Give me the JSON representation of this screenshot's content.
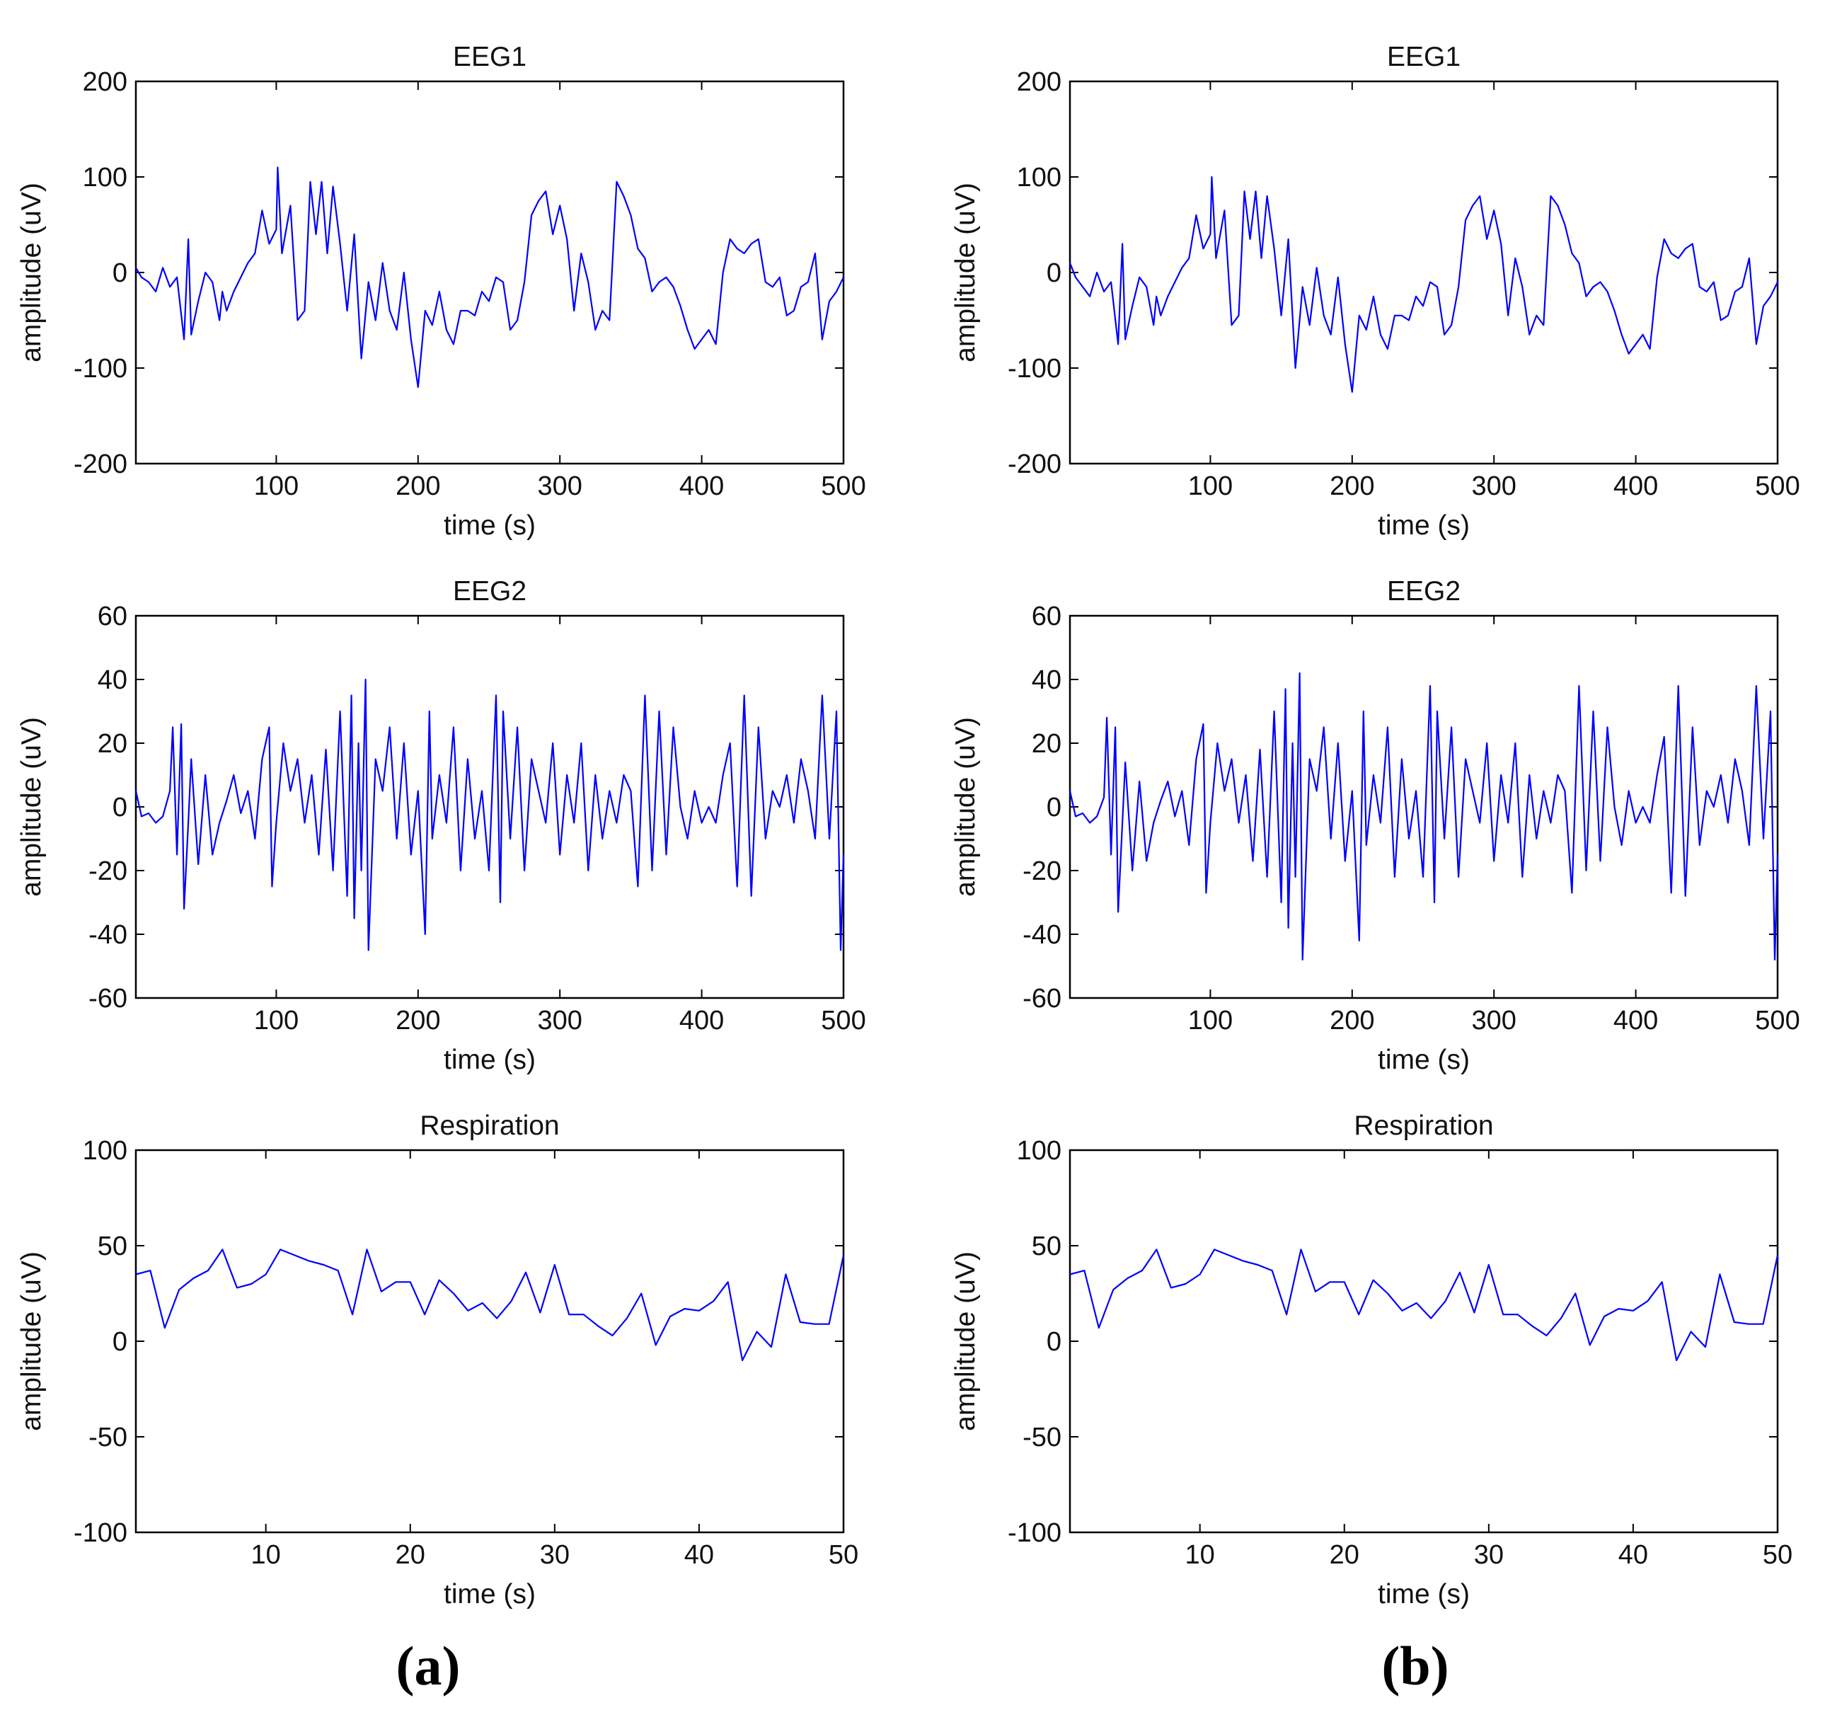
{
  "figure": {
    "panel_labels": [
      "a",
      "b"
    ]
  },
  "colors": {
    "line": "#0000ff",
    "axis": "#000000",
    "text": "#111111"
  },
  "chart_data": [
    {
      "panel": "a",
      "type": "line",
      "title": "EEG1",
      "xlabel": "time (s)",
      "ylabel": "amplitude (uV)",
      "xlim": [
        1,
        500
      ],
      "ylim": [
        -200,
        200
      ],
      "xticks": [
        100,
        200,
        300,
        400,
        500
      ],
      "yticks": [
        -200,
        -100,
        0,
        100,
        200
      ],
      "x": [
        1,
        5,
        10,
        15,
        20,
        25,
        30,
        35,
        38,
        40,
        45,
        50,
        55,
        60,
        62,
        65,
        70,
        75,
        80,
        85,
        90,
        95,
        100,
        101,
        104,
        110,
        115,
        120,
        124,
        128,
        132,
        136,
        140,
        145,
        150,
        155,
        160,
        165,
        170,
        175,
        180,
        185,
        190,
        195,
        200,
        205,
        210,
        215,
        220,
        225,
        230,
        235,
        240,
        245,
        250,
        255,
        260,
        265,
        270,
        275,
        280,
        285,
        290,
        295,
        300,
        305,
        310,
        315,
        320,
        325,
        330,
        335,
        340,
        345,
        350,
        355,
        360,
        365,
        370,
        375,
        380,
        385,
        390,
        395,
        400,
        405,
        410,
        415,
        420,
        425,
        430,
        435,
        440,
        445,
        450,
        455,
        460,
        465,
        470,
        475,
        480,
        485,
        490,
        495,
        500
      ],
      "series": [
        {
          "name": "EEG1",
          "values": [
            5,
            -5,
            -10,
            -20,
            5,
            -15,
            -5,
            -70,
            35,
            -65,
            -30,
            0,
            -10,
            -50,
            -20,
            -40,
            -20,
            -5,
            10,
            20,
            65,
            30,
            45,
            110,
            20,
            70,
            -50,
            -40,
            95,
            40,
            95,
            20,
            90,
            30,
            -40,
            40,
            -90,
            -10,
            -50,
            10,
            -40,
            -60,
            0,
            -70,
            -120,
            -40,
            -55,
            -20,
            -60,
            -75,
            -40,
            -40,
            -45,
            -20,
            -30,
            -5,
            -10,
            -60,
            -50,
            -10,
            60,
            75,
            85,
            40,
            70,
            35,
            -40,
            20,
            -10,
            -60,
            -40,
            -50,
            95,
            80,
            60,
            25,
            15,
            -20,
            -10,
            -5,
            -15,
            -35,
            -60,
            -80,
            -70,
            -60,
            -75,
            0,
            35,
            25,
            20,
            30,
            35,
            -10,
            -15,
            -5,
            -45,
            -40,
            -15,
            -10,
            20,
            -70,
            -30,
            -20,
            -5
          ]
        }
      ]
    },
    {
      "panel": "a",
      "type": "line",
      "title": "EEG2",
      "xlabel": "time (s)",
      "ylabel": "amplitude (uV)",
      "xlim": [
        1,
        500
      ],
      "ylim": [
        -60,
        60
      ],
      "xticks": [
        100,
        200,
        300,
        400,
        500
      ],
      "yticks": [
        -60,
        -40,
        -20,
        0,
        20,
        40,
        60
      ],
      "x": [
        1,
        5,
        10,
        15,
        20,
        25,
        27,
        30,
        33,
        35,
        38,
        40,
        45,
        50,
        55,
        60,
        65,
        70,
        75,
        80,
        85,
        90,
        95,
        97,
        100,
        105,
        110,
        115,
        120,
        125,
        130,
        135,
        140,
        145,
        150,
        153,
        155,
        158,
        160,
        163,
        165,
        170,
        175,
        180,
        185,
        190,
        195,
        200,
        205,
        208,
        210,
        215,
        220,
        225,
        230,
        235,
        240,
        245,
        250,
        255,
        258,
        260,
        265,
        270,
        275,
        280,
        285,
        290,
        295,
        300,
        305,
        310,
        315,
        320,
        325,
        330,
        335,
        340,
        345,
        350,
        355,
        360,
        365,
        370,
        375,
        380,
        385,
        390,
        395,
        400,
        405,
        410,
        415,
        420,
        425,
        430,
        435,
        440,
        445,
        450,
        455,
        460,
        465,
        470,
        475,
        480,
        485,
        490,
        495,
        498,
        500
      ],
      "series": [
        {
          "name": "EEG2",
          "values": [
            5,
            -3,
            -2,
            -5,
            -3,
            5,
            25,
            -15,
            26,
            -32,
            -5,
            15,
            -18,
            10,
            -15,
            -5,
            2,
            10,
            -2,
            5,
            -10,
            15,
            25,
            -25,
            -5,
            20,
            5,
            15,
            -5,
            10,
            -15,
            18,
            -20,
            30,
            -28,
            35,
            -35,
            20,
            -20,
            40,
            -45,
            15,
            5,
            25,
            -10,
            20,
            -15,
            5,
            -40,
            30,
            -10,
            10,
            -5,
            25,
            -20,
            15,
            -10,
            5,
            -20,
            35,
            -30,
            30,
            -10,
            25,
            -20,
            15,
            5,
            -5,
            20,
            -15,
            10,
            -5,
            20,
            -20,
            10,
            -10,
            5,
            -5,
            10,
            5,
            -25,
            35,
            -20,
            30,
            -15,
            25,
            0,
            -10,
            5,
            -5,
            0,
            -5,
            10,
            20,
            -25,
            35,
            -28,
            25,
            -10,
            5,
            0,
            10,
            -5,
            15,
            5,
            -10,
            35,
            -10,
            30,
            -45,
            -15
          ]
        }
      ]
    },
    {
      "panel": "a",
      "type": "line",
      "title": "Respiration",
      "xlabel": "time (s)",
      "ylabel": "amplitude (uV)",
      "xlim": [
        1,
        50
      ],
      "ylim": [
        -100,
        100
      ],
      "xticks": [
        10,
        20,
        30,
        40,
        50
      ],
      "yticks": [
        -100,
        -50,
        0,
        50,
        100
      ],
      "x": [
        1,
        2,
        3,
        4,
        5,
        6,
        7,
        8,
        9,
        10,
        11,
        12,
        13,
        14,
        15,
        16,
        17,
        18,
        19,
        20,
        21,
        22,
        23,
        24,
        25,
        26,
        27,
        28,
        29,
        30,
        31,
        32,
        33,
        34,
        35,
        36,
        37,
        38,
        39,
        40,
        41,
        42,
        43,
        44,
        45,
        46,
        47,
        48,
        49,
        50
      ],
      "series": [
        {
          "name": "Respiration",
          "values": [
            35,
            37,
            7,
            27,
            33,
            37,
            48,
            28,
            30,
            35,
            48,
            45,
            42,
            40,
            37,
            14,
            48,
            26,
            31,
            31,
            14,
            32,
            25,
            16,
            20,
            12,
            21,
            36,
            15,
            40,
            14,
            14,
            8,
            3,
            12,
            25,
            -2,
            13,
            17,
            16,
            21,
            31,
            -10,
            5,
            -3,
            35,
            10,
            9,
            9,
            45
          ]
        }
      ]
    },
    {
      "panel": "b",
      "type": "line",
      "title": "EEG1",
      "xlabel": "time (s)",
      "ylabel": "amplitude (uV)",
      "xlim": [
        1,
        500
      ],
      "ylim": [
        -200,
        200
      ],
      "xticks": [
        100,
        200,
        300,
        400,
        500
      ],
      "yticks": [
        -200,
        -100,
        0,
        100,
        200
      ],
      "x": [
        1,
        5,
        10,
        15,
        20,
        25,
        30,
        35,
        38,
        40,
        45,
        50,
        55,
        60,
        62,
        65,
        70,
        75,
        80,
        85,
        90,
        95,
        100,
        101,
        104,
        110,
        115,
        120,
        124,
        128,
        132,
        136,
        140,
        145,
        150,
        155,
        160,
        165,
        170,
        175,
        180,
        185,
        190,
        195,
        200,
        205,
        210,
        215,
        220,
        225,
        230,
        235,
        240,
        245,
        250,
        255,
        260,
        265,
        270,
        275,
        280,
        285,
        290,
        295,
        300,
        305,
        310,
        315,
        320,
        325,
        330,
        335,
        340,
        345,
        350,
        355,
        360,
        365,
        370,
        375,
        380,
        385,
        390,
        395,
        400,
        405,
        410,
        415,
        420,
        425,
        430,
        435,
        440,
        445,
        450,
        455,
        460,
        465,
        470,
        475,
        480,
        485,
        490,
        495,
        500
      ],
      "series": [
        {
          "name": "EEG1",
          "values": [
            10,
            -5,
            -15,
            -25,
            0,
            -20,
            -10,
            -75,
            30,
            -70,
            -35,
            -5,
            -15,
            -55,
            -25,
            -45,
            -25,
            -10,
            5,
            15,
            60,
            25,
            40,
            100,
            15,
            65,
            -55,
            -45,
            85,
            35,
            85,
            15,
            80,
            25,
            -45,
            35,
            -100,
            -15,
            -55,
            5,
            -45,
            -65,
            -5,
            -75,
            -125,
            -45,
            -60,
            -25,
            -65,
            -80,
            -45,
            -45,
            -50,
            -25,
            -35,
            -10,
            -15,
            -65,
            -55,
            -15,
            55,
            70,
            80,
            35,
            65,
            30,
            -45,
            15,
            -15,
            -65,
            -45,
            -55,
            80,
            70,
            50,
            20,
            10,
            -25,
            -15,
            -10,
            -20,
            -40,
            -65,
            -85,
            -75,
            -65,
            -80,
            -5,
            35,
            20,
            15,
            25,
            30,
            -15,
            -20,
            -10,
            -50,
            -45,
            -20,
            -15,
            15,
            -75,
            -35,
            -25,
            -10
          ]
        }
      ]
    },
    {
      "panel": "b",
      "type": "line",
      "title": "EEG2",
      "xlabel": "time (s)",
      "ylabel": "amplitude (uV)",
      "xlim": [
        1,
        500
      ],
      "ylim": [
        -60,
        60
      ],
      "xticks": [
        100,
        200,
        300,
        400,
        500
      ],
      "yticks": [
        -60,
        -40,
        -20,
        0,
        20,
        40,
        60
      ],
      "x": [
        1,
        5,
        10,
        15,
        20,
        25,
        27,
        30,
        33,
        35,
        38,
        40,
        45,
        50,
        55,
        60,
        65,
        70,
        75,
        80,
        85,
        90,
        95,
        97,
        100,
        105,
        110,
        115,
        120,
        125,
        130,
        135,
        140,
        145,
        150,
        153,
        155,
        158,
        160,
        163,
        165,
        170,
        175,
        180,
        185,
        190,
        195,
        200,
        205,
        208,
        210,
        215,
        220,
        225,
        230,
        235,
        240,
        245,
        250,
        255,
        258,
        260,
        265,
        270,
        275,
        280,
        285,
        290,
        295,
        300,
        305,
        310,
        315,
        320,
        325,
        330,
        335,
        340,
        345,
        350,
        355,
        360,
        365,
        370,
        375,
        380,
        385,
        390,
        395,
        400,
        405,
        410,
        415,
        420,
        425,
        430,
        435,
        440,
        445,
        450,
        455,
        460,
        465,
        470,
        475,
        480,
        485,
        490,
        495,
        498,
        500
      ],
      "series": [
        {
          "name": "EEG2",
          "values": [
            5,
            -3,
            -2,
            -5,
            -3,
            3,
            28,
            -15,
            25,
            -33,
            -5,
            14,
            -20,
            8,
            -17,
            -5,
            2,
            8,
            -3,
            5,
            -12,
            15,
            26,
            -27,
            -5,
            20,
            5,
            15,
            -5,
            10,
            -17,
            18,
            -22,
            30,
            -30,
            37,
            -38,
            20,
            -22,
            42,
            -48,
            15,
            5,
            25,
            -10,
            20,
            -17,
            5,
            -42,
            30,
            -12,
            10,
            -5,
            25,
            -22,
            15,
            -10,
            5,
            -22,
            38,
            -30,
            30,
            -10,
            25,
            -22,
            15,
            5,
            -5,
            20,
            -17,
            10,
            -5,
            20,
            -22,
            10,
            -10,
            5,
            -5,
            10,
            5,
            -27,
            38,
            -20,
            30,
            -17,
            25,
            0,
            -12,
            5,
            -5,
            0,
            -5,
            10,
            22,
            -27,
            38,
            -28,
            25,
            -12,
            5,
            0,
            10,
            -5,
            15,
            5,
            -12,
            38,
            -10,
            30,
            -48,
            -15
          ]
        }
      ]
    },
    {
      "panel": "b",
      "type": "line",
      "title": "Respiration",
      "xlabel": "time (s)",
      "ylabel": "amplitude (uV)",
      "xlim": [
        1,
        50
      ],
      "ylim": [
        -100,
        100
      ],
      "xticks": [
        10,
        20,
        30,
        40,
        50
      ],
      "yticks": [
        -100,
        -50,
        0,
        50,
        100
      ],
      "x": [
        1,
        2,
        3,
        4,
        5,
        6,
        7,
        8,
        9,
        10,
        11,
        12,
        13,
        14,
        15,
        16,
        17,
        18,
        19,
        20,
        21,
        22,
        23,
        24,
        25,
        26,
        27,
        28,
        29,
        30,
        31,
        32,
        33,
        34,
        35,
        36,
        37,
        38,
        39,
        40,
        41,
        42,
        43,
        44,
        45,
        46,
        47,
        48,
        49,
        50
      ],
      "series": [
        {
          "name": "Respiration",
          "values": [
            35,
            37,
            7,
            27,
            33,
            37,
            48,
            28,
            30,
            35,
            48,
            45,
            42,
            40,
            37,
            14,
            48,
            26,
            31,
            31,
            14,
            32,
            25,
            16,
            20,
            12,
            21,
            36,
            15,
            40,
            14,
            14,
            8,
            3,
            12,
            25,
            -2,
            13,
            17,
            16,
            21,
            31,
            -10,
            5,
            -3,
            35,
            10,
            9,
            9,
            45
          ]
        }
      ]
    }
  ]
}
